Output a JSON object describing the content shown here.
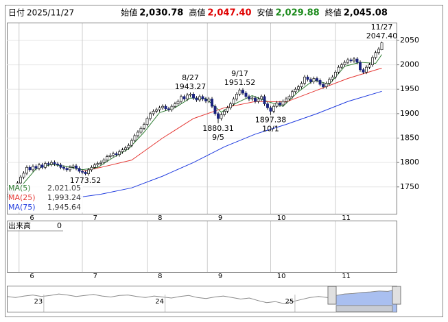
{
  "header": [
    {
      "label": "日付",
      "value": "2025/11/27"
    },
    {
      "label": "始値",
      "value": "2,030.78"
    },
    {
      "label": "高値",
      "value": "2,047.40"
    },
    {
      "label": "安値",
      "value": "2,029.88"
    },
    {
      "label": "終値",
      "value": "2,045.08"
    }
  ],
  "chart_data": {
    "type": "candlestick",
    "up_color": "#ffffff",
    "down_color": "#1a237e",
    "ylim": [
      1695,
      2085
    ],
    "yticks": [
      1750,
      1800,
      1850,
      1900,
      1950,
      2000,
      2050
    ],
    "xticks": [
      {
        "value": 3.5,
        "label": "6"
      },
      {
        "value": 24,
        "label": "7"
      },
      {
        "value": 45,
        "label": "8"
      },
      {
        "value": 64.5,
        "label": "9"
      },
      {
        "value": 85,
        "label": "10"
      },
      {
        "value": 106,
        "label": "11"
      }
    ],
    "grid": true,
    "candles": [
      [
        1730,
        1739,
        1726,
        1735
      ],
      [
        1735,
        1746,
        1731,
        1742
      ],
      [
        1742,
        1754,
        1738,
        1750
      ],
      [
        1750,
        1762,
        1746,
        1758
      ],
      [
        1758,
        1774,
        1754,
        1770
      ],
      [
        1770,
        1782,
        1766,
        1778
      ],
      [
        1778,
        1794,
        1774,
        1790
      ],
      [
        1790,
        1794,
        1781,
        1785
      ],
      [
        1785,
        1796,
        1781,
        1792
      ],
      [
        1792,
        1796,
        1784,
        1788
      ],
      [
        1788,
        1799,
        1784,
        1795
      ],
      [
        1795,
        1799,
        1786,
        1790
      ],
      [
        1790,
        1802,
        1786,
        1798
      ],
      [
        1798,
        1802,
        1792,
        1796
      ],
      [
        1796,
        1804,
        1792,
        1800
      ],
      [
        1800,
        1804,
        1793,
        1797
      ],
      [
        1797,
        1801,
        1791,
        1795
      ],
      [
        1795,
        1799,
        1786,
        1790
      ],
      [
        1790,
        1794,
        1784,
        1788
      ],
      [
        1788,
        1792,
        1781,
        1785
      ],
      [
        1785,
        1794,
        1781,
        1790
      ],
      [
        1790,
        1797,
        1786,
        1793
      ],
      [
        1793,
        1797,
        1784,
        1788
      ],
      [
        1788,
        1792,
        1778,
        1782
      ],
      [
        1782,
        1786,
        1776,
        1780
      ],
      [
        1780,
        1784,
        1773.52,
        1777
      ],
      [
        1777,
        1789,
        1773,
        1785
      ],
      [
        1785,
        1794,
        1781,
        1790
      ],
      [
        1790,
        1799,
        1786,
        1795
      ],
      [
        1795,
        1802,
        1791,
        1798
      ],
      [
        1798,
        1804,
        1794,
        1800
      ],
      [
        1800,
        1809,
        1796,
        1805
      ],
      [
        1805,
        1816,
        1801,
        1812
      ],
      [
        1812,
        1819,
        1808,
        1815
      ],
      [
        1815,
        1822,
        1811,
        1818
      ],
      [
        1818,
        1822,
        1812,
        1816
      ],
      [
        1816,
        1826,
        1812,
        1822
      ],
      [
        1822,
        1830,
        1818,
        1826
      ],
      [
        1826,
        1834,
        1822,
        1830
      ],
      [
        1830,
        1839,
        1826,
        1835
      ],
      [
        1835,
        1849,
        1831,
        1845
      ],
      [
        1845,
        1859,
        1841,
        1855
      ],
      [
        1855,
        1866,
        1851,
        1862
      ],
      [
        1862,
        1874,
        1858,
        1870
      ],
      [
        1870,
        1882,
        1866,
        1878
      ],
      [
        1878,
        1894,
        1874,
        1890
      ],
      [
        1890,
        1904,
        1886,
        1900
      ],
      [
        1900,
        1909,
        1896,
        1905
      ],
      [
        1905,
        1912,
        1901,
        1908
      ],
      [
        1908,
        1916,
        1904,
        1912
      ],
      [
        1912,
        1919,
        1908,
        1915
      ],
      [
        1915,
        1919,
        1906,
        1910
      ],
      [
        1910,
        1914,
        1904,
        1908
      ],
      [
        1908,
        1919,
        1904,
        1915
      ],
      [
        1915,
        1924,
        1911,
        1920
      ],
      [
        1920,
        1929,
        1916,
        1925
      ],
      [
        1925,
        1939,
        1921,
        1935
      ],
      [
        1935,
        1939,
        1926,
        1930
      ],
      [
        1930,
        1942,
        1926,
        1938
      ],
      [
        1938,
        1943.27,
        1934,
        1940
      ],
      [
        1940,
        1944,
        1928,
        1932
      ],
      [
        1932,
        1936,
        1924,
        1928
      ],
      [
        1928,
        1939,
        1924,
        1935
      ],
      [
        1935,
        1939,
        1926,
        1930
      ],
      [
        1930,
        1934,
        1922,
        1926
      ],
      [
        1926,
        1934,
        1922,
        1930
      ],
      [
        1930,
        1934,
        1911,
        1915
      ],
      [
        1915,
        1919,
        1896,
        1900
      ],
      [
        1900,
        1904,
        1880.31,
        1890
      ],
      [
        1890,
        1902,
        1886,
        1898
      ],
      [
        1898,
        1909,
        1894,
        1905
      ],
      [
        1905,
        1916,
        1901,
        1912
      ],
      [
        1912,
        1924,
        1908,
        1920
      ],
      [
        1920,
        1934,
        1916,
        1930
      ],
      [
        1930,
        1944,
        1926,
        1940
      ],
      [
        1940,
        1951.52,
        1936,
        1948
      ],
      [
        1948,
        1952,
        1938,
        1942
      ],
      [
        1942,
        1946,
        1931,
        1935
      ],
      [
        1935,
        1939,
        1926,
        1930
      ],
      [
        1930,
        1936,
        1926,
        1932
      ],
      [
        1932,
        1936,
        1921,
        1925
      ],
      [
        1925,
        1934,
        1921,
        1930
      ],
      [
        1930,
        1939,
        1926,
        1935
      ],
      [
        1935,
        1939,
        1916,
        1920
      ],
      [
        1920,
        1924,
        1908,
        1912
      ],
      [
        1912,
        1916,
        1897.38,
        1905
      ],
      [
        1905,
        1919,
        1901,
        1915
      ],
      [
        1915,
        1926,
        1911,
        1922
      ],
      [
        1922,
        1926,
        1914,
        1918
      ],
      [
        1918,
        1929,
        1914,
        1925
      ],
      [
        1925,
        1934,
        1921,
        1930
      ],
      [
        1930,
        1939,
        1926,
        1935
      ],
      [
        1935,
        1949,
        1931,
        1945
      ],
      [
        1945,
        1954,
        1941,
        1950
      ],
      [
        1950,
        1959,
        1946,
        1955
      ],
      [
        1955,
        1966,
        1951,
        1962
      ],
      [
        1962,
        1979,
        1958,
        1975
      ],
      [
        1975,
        1979,
        1966,
        1970
      ],
      [
        1970,
        1974,
        1961,
        1965
      ],
      [
        1965,
        1976,
        1961,
        1972
      ],
      [
        1972,
        1976,
        1964,
        1968
      ],
      [
        1968,
        1972,
        1956,
        1960
      ],
      [
        1960,
        1964,
        1951,
        1955
      ],
      [
        1955,
        1966,
        1951,
        1962
      ],
      [
        1962,
        1974,
        1958,
        1970
      ],
      [
        1970,
        1979,
        1966,
        1975
      ],
      [
        1975,
        1989,
        1971,
        1985
      ],
      [
        1985,
        1999,
        1981,
        1995
      ],
      [
        1995,
        2004,
        1991,
        2000
      ],
      [
        2000,
        2009,
        1996,
        2005
      ],
      [
        2005,
        2014,
        2001,
        2010
      ],
      [
        2010,
        2014,
        2004,
        2008
      ],
      [
        2008,
        2016,
        2004,
        2012
      ],
      [
        2012,
        2016,
        2001,
        2005
      ],
      [
        2005,
        2009,
        1986,
        1990
      ],
      [
        1990,
        1994,
        1981,
        1985
      ],
      [
        1985,
        1999,
        1981,
        1995
      ],
      [
        1995,
        2004,
        1991,
        2000
      ],
      [
        2000,
        2019,
        1996,
        2015
      ],
      [
        2015,
        2029,
        2011,
        2025
      ],
      [
        2025,
        2036,
        2021,
        2032
      ],
      [
        2030.78,
        2047.4,
        2029.88,
        2045.08
      ]
    ],
    "series": [
      {
        "name": "MA(5)",
        "color": "#2e7d32",
        "legend_value_label": "2,021.05",
        "x": [
          4,
          9,
          14,
          19,
          24,
          29,
          34,
          39,
          44,
          49,
          54,
          59,
          64,
          69,
          74,
          79,
          84,
          89,
          94,
          99,
          104,
          109,
          114,
          119,
          121
        ],
        "values": [
          1750,
          1787,
          1796,
          1792,
          1785,
          1790,
          1810,
          1828,
          1862,
          1902,
          1912,
          1932,
          1931,
          1903,
          1922,
          1937,
          1925,
          1915,
          1945,
          1969,
          1960,
          1997,
          2005,
          2003,
          2021.05
        ]
      },
      {
        "name": "MA(25)",
        "color": "#e53935",
        "legend_value_label": "1,993.24",
        "x": [
          24,
          30,
          40,
          50,
          60,
          70,
          80,
          90,
          100,
          110,
          121
        ],
        "values": [
          1782,
          1790,
          1805,
          1850,
          1890,
          1912,
          1925,
          1924,
          1948,
          1972,
          1993.24
        ]
      },
      {
        "name": "MA(75)",
        "color": "#1e3adf",
        "legend_value_label": "1,945.64",
        "x": [
          22,
          30,
          40,
          50,
          60,
          70,
          80,
          90,
          100,
          110,
          121
        ],
        "values": [
          1728,
          1735,
          1748,
          1772,
          1800,
          1832,
          1858,
          1878,
          1900,
          1925,
          1945.64
        ]
      }
    ],
    "annotations": [
      {
        "candle": 121,
        "field": 1,
        "date": "11/27",
        "label": "2047.40"
      },
      {
        "candle": 59,
        "field": 1,
        "date": "8/27",
        "label": "1943.27"
      },
      {
        "candle": 75,
        "field": 1,
        "date": "9/17",
        "label": "1951.52"
      },
      {
        "candle": 68,
        "field": 2,
        "date": "9/5",
        "label": "1880.31"
      },
      {
        "candle": 85,
        "field": 2,
        "date": "10/1",
        "label": "1897.38"
      },
      {
        "candle": 25,
        "field": 2,
        "label": "1773.52"
      }
    ]
  },
  "volume": {
    "label": "出来高",
    "value": 0
  },
  "navigator": {
    "ylim": [
      1600,
      2100
    ],
    "xticks": [
      {
        "value": 3,
        "label": "23"
      },
      {
        "value": 17,
        "label": "24"
      },
      {
        "value": 32,
        "label": "25"
      }
    ],
    "values": [
      1900,
      1880,
      1910,
      1930,
      1900,
      1920,
      1950,
      1930,
      1900,
      1920,
      1940,
      1910,
      1890,
      1920,
      1930,
      1900,
      1880,
      1910,
      1890,
      1870,
      1900,
      1920,
      1880,
      1860,
      1890,
      1910,
      1880,
      1850,
      1870,
      1820,
      1780,
      1800,
      1760,
      1800,
      1840,
      1880,
      1900,
      1880,
      1920,
      1950,
      1960,
      1980,
      1990,
      2010,
      2000,
      2045.08
    ]
  }
}
